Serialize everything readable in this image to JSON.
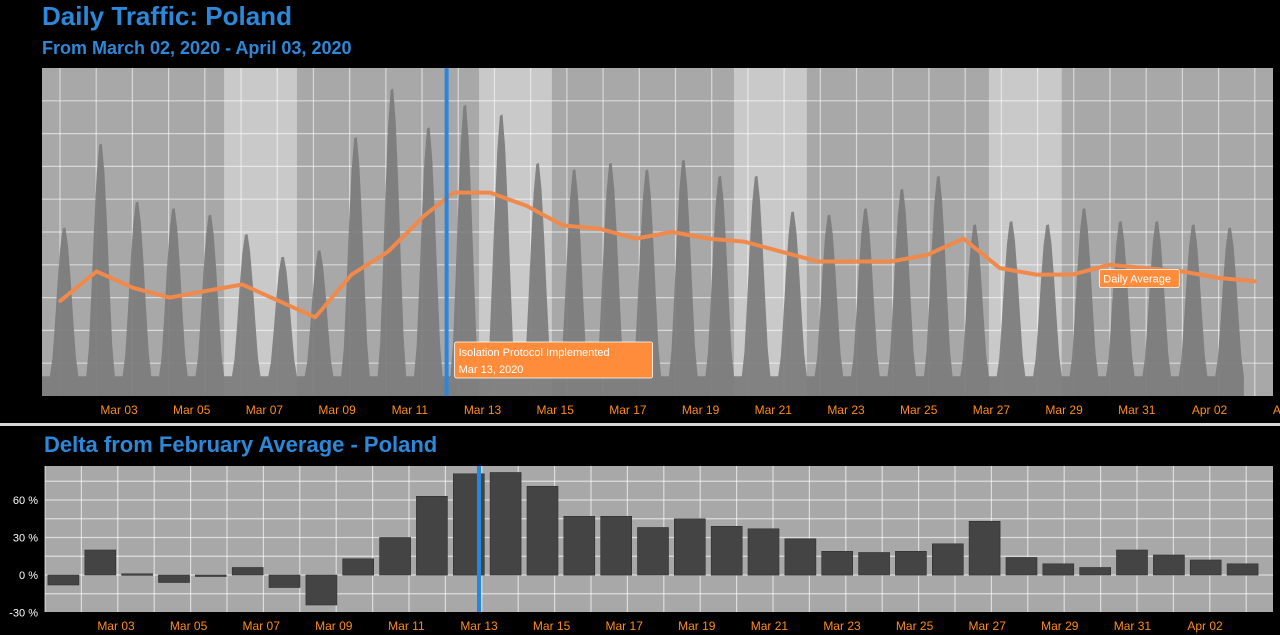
{
  "chart_data": [
    {
      "type": "area",
      "title": "Daily Traffic: Poland",
      "subtitle": "From March 02, 2020 - April 03, 2020",
      "x_ticks": [
        "Mar 03",
        "Mar 05",
        "Mar 07",
        "Mar 09",
        "Mar 11",
        "Mar 13",
        "Mar 15",
        "Mar 17",
        "Mar 19",
        "Mar 21",
        "Mar 23",
        "Mar 25",
        "Mar 27",
        "Mar 29",
        "Mar 31",
        "Apr 02",
        "Apr"
      ],
      "x_start_day": 2.0,
      "x_end_day": 35.8,
      "ylim": [
        0,
        100
      ],
      "grid": true,
      "series": [
        {
          "name": "Daily Average",
          "x_days": [
            2.5,
            3.5,
            4.5,
            5.5,
            6.5,
            7.5,
            8.5,
            9.5,
            10.5,
            11.5,
            12.5,
            13.3,
            14.3,
            15.3,
            16.3,
            17.3,
            18.3,
            19.3,
            20.3,
            21.3,
            22.3,
            23.3,
            24.3,
            25.3,
            26.3,
            27.3,
            28.3,
            29.3,
            30.3,
            31.3,
            32.3,
            33.3,
            34.3,
            35.3
          ],
          "values": [
            29,
            38,
            33,
            30,
            32,
            34,
            29,
            24,
            37,
            44,
            55,
            62,
            62,
            58,
            52,
            51,
            48,
            50,
            48,
            47,
            44,
            41,
            41,
            41,
            43,
            48,
            39,
            37,
            37,
            40,
            39,
            38,
            36,
            35
          ]
        }
      ],
      "traffic_peaks": [
        {
          "day": 2.5,
          "peak": 52
        },
        {
          "day": 3.5,
          "peak": 78
        },
        {
          "day": 4.5,
          "peak": 60
        },
        {
          "day": 5.5,
          "peak": 58
        },
        {
          "day": 6.5,
          "peak": 56
        },
        {
          "day": 7.5,
          "peak": 50
        },
        {
          "day": 8.5,
          "peak": 43
        },
        {
          "day": 9.5,
          "peak": 45
        },
        {
          "day": 10.5,
          "peak": 80
        },
        {
          "day": 11.5,
          "peak": 95
        },
        {
          "day": 12.5,
          "peak": 83
        },
        {
          "day": 13.5,
          "peak": 90
        },
        {
          "day": 14.5,
          "peak": 87
        },
        {
          "day": 15.5,
          "peak": 72
        },
        {
          "day": 16.5,
          "peak": 70
        },
        {
          "day": 17.5,
          "peak": 72
        },
        {
          "day": 18.5,
          "peak": 70
        },
        {
          "day": 19.5,
          "peak": 73
        },
        {
          "day": 20.5,
          "peak": 68
        },
        {
          "day": 21.5,
          "peak": 68
        },
        {
          "day": 22.5,
          "peak": 57
        },
        {
          "day": 23.5,
          "peak": 56
        },
        {
          "day": 24.5,
          "peak": 58
        },
        {
          "day": 25.5,
          "peak": 64
        },
        {
          "day": 26.5,
          "peak": 68
        },
        {
          "day": 27.5,
          "peak": 53
        },
        {
          "day": 28.5,
          "peak": 54
        },
        {
          "day": 29.5,
          "peak": 53
        },
        {
          "day": 30.5,
          "peak": 58
        },
        {
          "day": 31.5,
          "peak": 54
        },
        {
          "day": 32.5,
          "peak": 54
        },
        {
          "day": 33.5,
          "peak": 53
        },
        {
          "day": 34.5,
          "peak": 52
        }
      ],
      "weekend_bands": [
        [
          7,
          9
        ],
        [
          14,
          16
        ],
        [
          21,
          23
        ],
        [
          28,
          30
        ]
      ],
      "annotations": [
        {
          "text_line1": "Isolation Protocol Implemented",
          "text_line2": "Mar 13, 2020",
          "day": 13.0,
          "color": "#ff8c3a"
        },
        {
          "text": "Daily Average",
          "color": "#ff8c3a",
          "day": 33.2,
          "value": 37
        }
      ]
    },
    {
      "type": "bar",
      "title": "Delta from February Average - Poland",
      "x_ticks": [
        "Mar 03",
        "Mar 05",
        "Mar 07",
        "Mar 09",
        "Mar 11",
        "Mar 13",
        "Mar 15",
        "Mar 17",
        "Mar 19",
        "Mar 21",
        "Mar 23",
        "Mar 25",
        "Mar 27",
        "Mar 29",
        "Mar 31",
        "Apr 02"
      ],
      "y_ticks": [
        "60 %",
        "30 %",
        "0 %",
        "-30 %"
      ],
      "ylim": [
        -30,
        85
      ],
      "x_start_day": 2.0,
      "x_end_day": 35.0,
      "grid": true,
      "categories_days": [
        2.5,
        3.5,
        4.5,
        5.5,
        6.5,
        7.5,
        8.5,
        9.5,
        10.5,
        11.5,
        12.5,
        13.5,
        14.5,
        15.5,
        16.5,
        17.5,
        18.5,
        19.5,
        20.5,
        21.5,
        22.5,
        23.5,
        24.5,
        25.5,
        26.5,
        27.5,
        28.5,
        29.5,
        30.5,
        31.5,
        32.5,
        33.5,
        34.5
      ],
      "values": [
        -8,
        20,
        1,
        -6,
        0,
        6,
        -10,
        -24,
        13,
        30,
        63,
        81,
        82,
        71,
        47,
        47,
        38,
        45,
        39,
        37,
        29,
        19,
        18,
        19,
        25,
        43,
        14,
        9,
        6,
        20,
        16,
        12,
        9
      ]
    }
  ]
}
